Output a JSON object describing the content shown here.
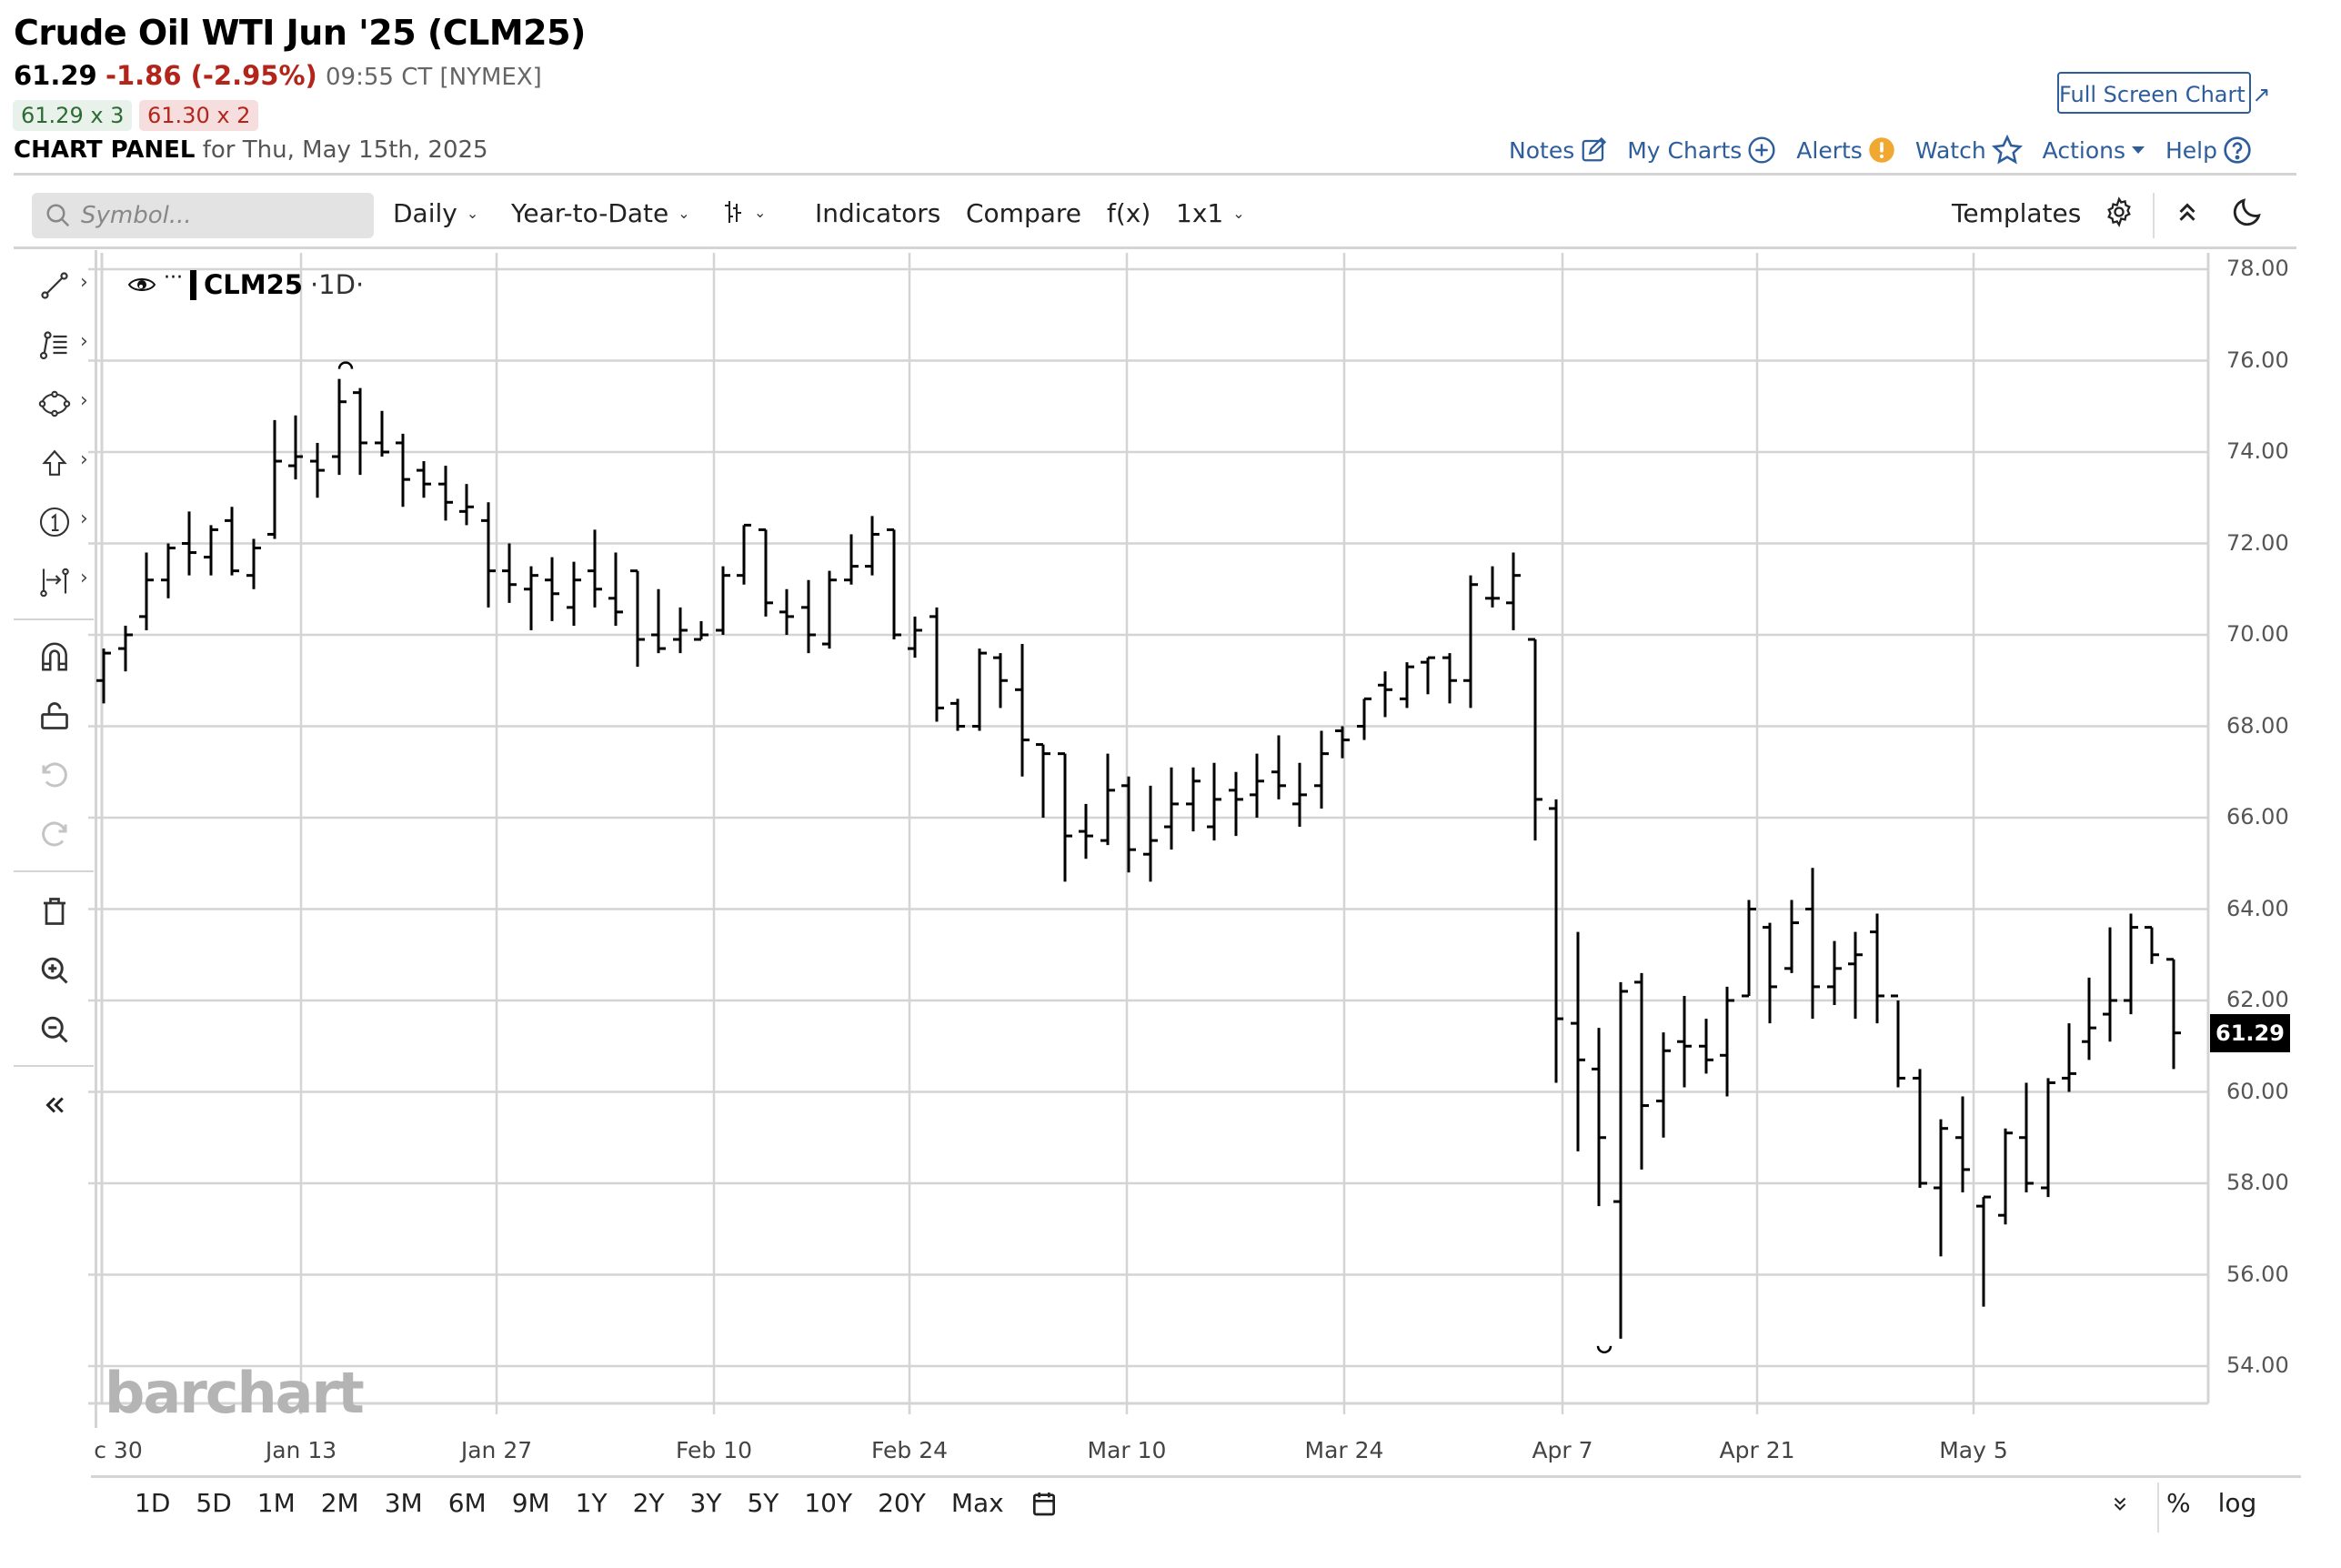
{
  "header": {
    "title": "Crude Oil WTI Jun '25 (CLM25)",
    "last": "61.29",
    "change": "-1.86 (-2.95%)",
    "time": "09:55 CT [NYMEX]",
    "bid": "61.29 x 3",
    "ask": "61.30 x 2",
    "panel_label": "CHART PANEL",
    "panel_date": "for Thu, May 15th, 2025",
    "full_screen_label": "Full Screen Chart ↗"
  },
  "topnav": {
    "notes": "Notes",
    "my_charts": "My Charts",
    "alerts": "Alerts",
    "watch": "Watch",
    "actions": "Actions",
    "help": "Help"
  },
  "toolbar": {
    "search_placeholder": "Symbol...",
    "interval": "Daily",
    "range": "Year-to-Date",
    "indicators": "Indicators",
    "compare": "Compare",
    "fx": "f(x)",
    "layout": "1x1",
    "templates": "Templates"
  },
  "legend": {
    "symbol": "CLM25",
    "interval": "·1D·"
  },
  "watermark": "barchart",
  "last_price_label": "61.29",
  "periods": [
    "1D",
    "5D",
    "1M",
    "2M",
    "3M",
    "6M",
    "9M",
    "1Y",
    "2Y",
    "3Y",
    "5Y",
    "10Y",
    "20Y",
    "Max"
  ],
  "bottom_right": {
    "percent": "%",
    "log": "log"
  },
  "colors": {
    "accent": "#2d5d9b",
    "down": "#b3251b",
    "up": "#2e6b34",
    "alert": "#f0a830",
    "bar": "#000000",
    "grid": "#d4d4d4"
  },
  "chart_data": {
    "type": "ohlc-bar",
    "title": "Crude Oil WTI Jun '25 (CLM25)",
    "interval": "Daily",
    "range": "Year-to-Date",
    "ylim": [
      53,
      78.4
    ],
    "yticks": [
      "78.00",
      "76.00",
      "74.00",
      "72.00",
      "70.00",
      "68.00",
      "66.00",
      "64.00",
      "62.00",
      "60.00",
      "58.00",
      "56.00",
      "54.00"
    ],
    "xticks": [
      {
        "label": "c 30",
        "x": 130
      },
      {
        "label": "Jan 13",
        "x": 331
      },
      {
        "label": "Jan 27",
        "x": 546
      },
      {
        "label": "Feb 10",
        "x": 785
      },
      {
        "label": "Feb 24",
        "x": 1000
      },
      {
        "label": "Mar 10",
        "x": 1239
      },
      {
        "label": "Mar 24",
        "x": 1478
      },
      {
        "label": "Apr 7",
        "x": 1718
      },
      {
        "label": "Apr 21",
        "x": 1932
      },
      {
        "label": "May 5",
        "x": 2170
      }
    ],
    "annotations": [
      {
        "type": "high-marker",
        "value": 75.7,
        "x": 380
      },
      {
        "type": "low-marker",
        "value": 54.6,
        "x": 1764
      }
    ],
    "last": 61.29,
    "bars": [
      {
        "x": 114,
        "o": 69.0,
        "h": 69.7,
        "l": 68.5,
        "c": 69.6
      },
      {
        "x": 138,
        "o": 69.7,
        "h": 70.2,
        "l": 69.2,
        "c": 70.0
      },
      {
        "x": 161,
        "o": 70.4,
        "h": 71.8,
        "l": 70.1,
        "c": 71.2
      },
      {
        "x": 185,
        "o": 71.2,
        "h": 72.0,
        "l": 70.8,
        "c": 71.9
      },
      {
        "x": 208,
        "o": 72.0,
        "h": 72.7,
        "l": 71.3,
        "c": 71.8
      },
      {
        "x": 232,
        "o": 71.7,
        "h": 72.4,
        "l": 71.3,
        "c": 72.3
      },
      {
        "x": 255,
        "o": 72.5,
        "h": 72.8,
        "l": 71.3,
        "c": 71.4
      },
      {
        "x": 279,
        "o": 71.3,
        "h": 72.1,
        "l": 71.0,
        "c": 71.9
      },
      {
        "x": 302,
        "o": 72.2,
        "h": 74.7,
        "l": 72.1,
        "c": 73.8
      },
      {
        "x": 325,
        "o": 73.7,
        "h": 74.8,
        "l": 73.4,
        "c": 73.9
      },
      {
        "x": 349,
        "o": 73.8,
        "h": 74.2,
        "l": 73.0,
        "c": 73.6
      },
      {
        "x": 373,
        "o": 73.9,
        "h": 75.6,
        "l": 73.5,
        "c": 75.1
      },
      {
        "x": 396,
        "o": 75.3,
        "h": 75.4,
        "l": 73.5,
        "c": 74.2
      },
      {
        "x": 420,
        "o": 74.2,
        "h": 74.9,
        "l": 73.9,
        "c": 74.0
      },
      {
        "x": 443,
        "o": 74.2,
        "h": 74.4,
        "l": 72.8,
        "c": 73.4
      },
      {
        "x": 466,
        "o": 73.6,
        "h": 73.8,
        "l": 73.0,
        "c": 73.3
      },
      {
        "x": 490,
        "o": 73.3,
        "h": 73.7,
        "l": 72.5,
        "c": 72.9
      },
      {
        "x": 513,
        "o": 72.7,
        "h": 73.3,
        "l": 72.4,
        "c": 72.8
      },
      {
        "x": 537,
        "o": 72.5,
        "h": 72.9,
        "l": 70.6,
        "c": 71.4
      },
      {
        "x": 560,
        "o": 71.4,
        "h": 72.0,
        "l": 70.7,
        "c": 71.1
      },
      {
        "x": 584,
        "o": 71.0,
        "h": 71.5,
        "l": 70.1,
        "c": 71.3
      },
      {
        "x": 607,
        "o": 71.2,
        "h": 71.7,
        "l": 70.3,
        "c": 70.9
      },
      {
        "x": 631,
        "o": 70.6,
        "h": 71.6,
        "l": 70.2,
        "c": 71.2
      },
      {
        "x": 654,
        "o": 71.4,
        "h": 72.3,
        "l": 70.6,
        "c": 71.0
      },
      {
        "x": 677,
        "o": 70.8,
        "h": 71.8,
        "l": 70.2,
        "c": 70.5
      },
      {
        "x": 701,
        "o": 71.4,
        "h": 71.4,
        "l": 69.3,
        "c": 69.9
      },
      {
        "x": 724,
        "o": 70.0,
        "h": 71.0,
        "l": 69.6,
        "c": 69.7
      },
      {
        "x": 748,
        "o": 69.9,
        "h": 70.6,
        "l": 69.6,
        "c": 70.1
      },
      {
        "x": 771,
        "o": 69.9,
        "h": 70.3,
        "l": 69.9,
        "c": 70.0
      },
      {
        "x": 795,
        "o": 70.1,
        "h": 71.5,
        "l": 70.0,
        "c": 71.3
      },
      {
        "x": 818,
        "o": 71.3,
        "h": 72.4,
        "l": 71.1,
        "c": 72.4
      },
      {
        "x": 842,
        "o": 72.3,
        "h": 72.3,
        "l": 70.4,
        "c": 70.7
      },
      {
        "x": 865,
        "o": 70.5,
        "h": 71.0,
        "l": 70.0,
        "c": 70.4
      },
      {
        "x": 889,
        "o": 70.6,
        "h": 71.2,
        "l": 69.6,
        "c": 70.0
      },
      {
        "x": 912,
        "o": 69.8,
        "h": 71.4,
        "l": 69.7,
        "c": 71.2
      },
      {
        "x": 936,
        "o": 71.2,
        "h": 72.2,
        "l": 71.1,
        "c": 71.5
      },
      {
        "x": 959,
        "o": 71.5,
        "h": 72.6,
        "l": 71.3,
        "c": 72.2
      },
      {
        "x": 983,
        "o": 72.3,
        "h": 72.3,
        "l": 69.9,
        "c": 70.0
      },
      {
        "x": 1006,
        "o": 69.7,
        "h": 70.4,
        "l": 69.5,
        "c": 70.1
      },
      {
        "x": 1030,
        "o": 70.4,
        "h": 70.6,
        "l": 68.1,
        "c": 68.4
      },
      {
        "x": 1053,
        "o": 68.5,
        "h": 68.6,
        "l": 67.9,
        "c": 68.0
      },
      {
        "x": 1077,
        "o": 68.0,
        "h": 69.7,
        "l": 67.9,
        "c": 69.6
      },
      {
        "x": 1100,
        "o": 69.5,
        "h": 69.6,
        "l": 68.4,
        "c": 69.0
      },
      {
        "x": 1124,
        "o": 68.8,
        "h": 69.8,
        "l": 66.9,
        "c": 67.7
      },
      {
        "x": 1147,
        "o": 67.6,
        "h": 67.6,
        "l": 66.0,
        "c": 67.4
      },
      {
        "x": 1171,
        "o": 67.4,
        "h": 67.4,
        "l": 64.6,
        "c": 65.6
      },
      {
        "x": 1194,
        "o": 65.7,
        "h": 66.3,
        "l": 65.1,
        "c": 65.6
      },
      {
        "x": 1218,
        "o": 65.5,
        "h": 67.4,
        "l": 65.4,
        "c": 66.6
      },
      {
        "x": 1241,
        "o": 66.7,
        "h": 66.9,
        "l": 64.8,
        "c": 65.3
      },
      {
        "x": 1265,
        "o": 65.2,
        "h": 66.7,
        "l": 64.6,
        "c": 65.5
      },
      {
        "x": 1288,
        "o": 65.8,
        "h": 67.1,
        "l": 65.3,
        "c": 66.3
      },
      {
        "x": 1312,
        "o": 66.3,
        "h": 67.1,
        "l": 65.7,
        "c": 66.8
      },
      {
        "x": 1335,
        "o": 65.8,
        "h": 67.2,
        "l": 65.5,
        "c": 66.4
      },
      {
        "x": 1359,
        "o": 66.6,
        "h": 67.0,
        "l": 65.6,
        "c": 66.4
      },
      {
        "x": 1382,
        "o": 66.5,
        "h": 67.4,
        "l": 66.0,
        "c": 66.8
      },
      {
        "x": 1406,
        "o": 67.0,
        "h": 67.8,
        "l": 66.4,
        "c": 66.7
      },
      {
        "x": 1429,
        "o": 66.3,
        "h": 67.2,
        "l": 65.8,
        "c": 66.5
      },
      {
        "x": 1453,
        "o": 66.7,
        "h": 67.9,
        "l": 66.2,
        "c": 67.4
      },
      {
        "x": 1476,
        "o": 67.9,
        "h": 68.0,
        "l": 67.3,
        "c": 67.7
      },
      {
        "x": 1500,
        "o": 68.0,
        "h": 68.6,
        "l": 67.7,
        "c": 68.6
      },
      {
        "x": 1523,
        "o": 68.9,
        "h": 69.2,
        "l": 68.2,
        "c": 68.8
      },
      {
        "x": 1547,
        "o": 68.6,
        "h": 69.4,
        "l": 68.4,
        "c": 69.3
      },
      {
        "x": 1570,
        "o": 69.4,
        "h": 69.5,
        "l": 68.7,
        "c": 69.5
      },
      {
        "x": 1594,
        "o": 69.5,
        "h": 69.6,
        "l": 68.5,
        "c": 69.0
      },
      {
        "x": 1617,
        "o": 69.0,
        "h": 71.3,
        "l": 68.4,
        "c": 71.1
      },
      {
        "x": 1641,
        "o": 70.8,
        "h": 71.5,
        "l": 70.6,
        "c": 70.8
      },
      {
        "x": 1664,
        "o": 70.7,
        "h": 71.8,
        "l": 70.1,
        "c": 71.3
      },
      {
        "x": 1688,
        "o": 69.9,
        "h": 69.9,
        "l": 65.5,
        "c": 66.4
      },
      {
        "x": 1711,
        "o": 66.2,
        "h": 66.4,
        "l": 60.2,
        "c": 61.6
      },
      {
        "x": 1735,
        "o": 61.5,
        "h": 63.5,
        "l": 58.7,
        "c": 60.7
      },
      {
        "x": 1758,
        "o": 60.5,
        "h": 61.4,
        "l": 57.5,
        "c": 59.0
      },
      {
        "x": 1782,
        "o": 57.6,
        "h": 62.4,
        "l": 54.6,
        "c": 62.2
      },
      {
        "x": 1805,
        "o": 62.4,
        "h": 62.6,
        "l": 58.3,
        "c": 59.7
      },
      {
        "x": 1829,
        "o": 59.8,
        "h": 61.3,
        "l": 59.0,
        "c": 60.9
      },
      {
        "x": 1852,
        "o": 61.1,
        "h": 62.1,
        "l": 60.1,
        "c": 61.0
      },
      {
        "x": 1876,
        "o": 61.0,
        "h": 61.6,
        "l": 60.4,
        "c": 60.7
      },
      {
        "x": 1899,
        "o": 60.8,
        "h": 62.3,
        "l": 59.9,
        "c": 62.0
      },
      {
        "x": 1923,
        "o": 62.1,
        "h": 64.2,
        "l": 62.1,
        "c": 64.0
      },
      {
        "x": 1946,
        "o": 63.6,
        "h": 63.7,
        "l": 61.5,
        "c": 62.3
      },
      {
        "x": 1970,
        "o": 62.7,
        "h": 64.2,
        "l": 62.6,
        "c": 63.7
      },
      {
        "x": 1993,
        "o": 64.0,
        "h": 64.9,
        "l": 61.6,
        "c": 62.3
      },
      {
        "x": 2017,
        "o": 62.3,
        "h": 63.3,
        "l": 61.9,
        "c": 62.7
      },
      {
        "x": 2040,
        "o": 62.8,
        "h": 63.5,
        "l": 61.6,
        "c": 63.0
      },
      {
        "x": 2064,
        "o": 63.5,
        "h": 63.9,
        "l": 61.5,
        "c": 62.1
      },
      {
        "x": 2087,
        "o": 62.1,
        "h": 62.0,
        "l": 60.1,
        "c": 60.3
      },
      {
        "x": 2111,
        "o": 60.3,
        "h": 60.5,
        "l": 57.9,
        "c": 58.0
      },
      {
        "x": 2134,
        "o": 57.9,
        "h": 59.4,
        "l": 56.4,
        "c": 59.2
      },
      {
        "x": 2158,
        "o": 59.0,
        "h": 59.9,
        "l": 57.8,
        "c": 58.3
      },
      {
        "x": 2181,
        "o": 57.5,
        "h": 57.7,
        "l": 55.3,
        "c": 57.7
      },
      {
        "x": 2205,
        "o": 57.3,
        "h": 59.2,
        "l": 57.1,
        "c": 59.1
      },
      {
        "x": 2228,
        "o": 59.0,
        "h": 60.2,
        "l": 57.8,
        "c": 58.0
      },
      {
        "x": 2252,
        "o": 57.9,
        "h": 60.3,
        "l": 57.7,
        "c": 60.2
      },
      {
        "x": 2275,
        "o": 60.3,
        "h": 61.5,
        "l": 60.0,
        "c": 60.4
      },
      {
        "x": 2297,
        "o": 61.1,
        "h": 62.5,
        "l": 60.7,
        "c": 61.4
      },
      {
        "x": 2320,
        "o": 61.7,
        "h": 63.6,
        "l": 61.1,
        "c": 62.0
      },
      {
        "x": 2343,
        "o": 62.0,
        "h": 63.9,
        "l": 61.7,
        "c": 63.6
      },
      {
        "x": 2366,
        "o": 63.6,
        "h": 63.6,
        "l": 62.8,
        "c": 63.0
      },
      {
        "x": 2390,
        "o": 62.9,
        "h": 62.9,
        "l": 60.5,
        "c": 61.29
      }
    ]
  }
}
